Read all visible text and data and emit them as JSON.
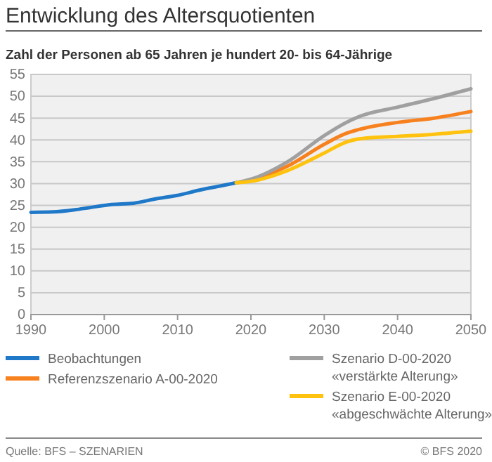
{
  "chart_data": {
    "type": "line",
    "title": "Entwicklung des Altersquotienten",
    "subtitle": "Zahl der Personen ab 65 Jahren je hundert 20- bis 64-Jährige",
    "xlim": [
      1990,
      2050
    ],
    "xticks": [
      1990,
      2000,
      2010,
      2020,
      2030,
      2040,
      2050
    ],
    "ylim": [
      0,
      55
    ],
    "yticks": [
      0,
      5,
      10,
      15,
      20,
      25,
      30,
      35,
      40,
      45,
      50,
      55
    ],
    "grid": "y",
    "legend": "bottom",
    "line_style": "solid",
    "marker": "none",
    "annotations": [
      "Quelle: BFS – SZENARIEN",
      "© BFS 2020"
    ],
    "series": [
      {
        "name": "Beobachtungen",
        "color": "#1f78c8",
        "x": [
          1990,
          1993,
          1996,
          1998,
          2001,
          2004,
          2007,
          2010,
          2013,
          2016,
          2018
        ],
        "values": [
          23.4,
          23.5,
          24.0,
          24.5,
          25.2,
          25.5,
          26.5,
          27.3,
          28.5,
          29.5,
          30.2
        ]
      },
      {
        "name": "Referenzszenario A-00-2020",
        "color": "#f7811e",
        "x": [
          2018,
          2020,
          2025,
          2030,
          2033,
          2035,
          2040,
          2045,
          2050
        ],
        "values": [
          30.2,
          30.8,
          34,
          39,
          41.5,
          42.5,
          44,
          45,
          46.5
        ]
      },
      {
        "name": "Szenario D-00-2020 «verstärkte Alterung»",
        "color": "#a0a0a0",
        "x": [
          2018,
          2020,
          2025,
          2030,
          2033,
          2035,
          2040,
          2045,
          2050
        ],
        "values": [
          30.2,
          31,
          35,
          41,
          44,
          45.5,
          47.5,
          49.5,
          51.7
        ]
      },
      {
        "name": "Szenario E-00-2020 «abgeschwächte Alterung»",
        "color": "#ffc20e",
        "x": [
          2018,
          2020,
          2025,
          2030,
          2033,
          2035,
          2040,
          2045,
          2050
        ],
        "values": [
          30.2,
          30.5,
          33,
          37,
          39.5,
          40.3,
          40.8,
          41.3,
          42
        ]
      }
    ]
  }
}
